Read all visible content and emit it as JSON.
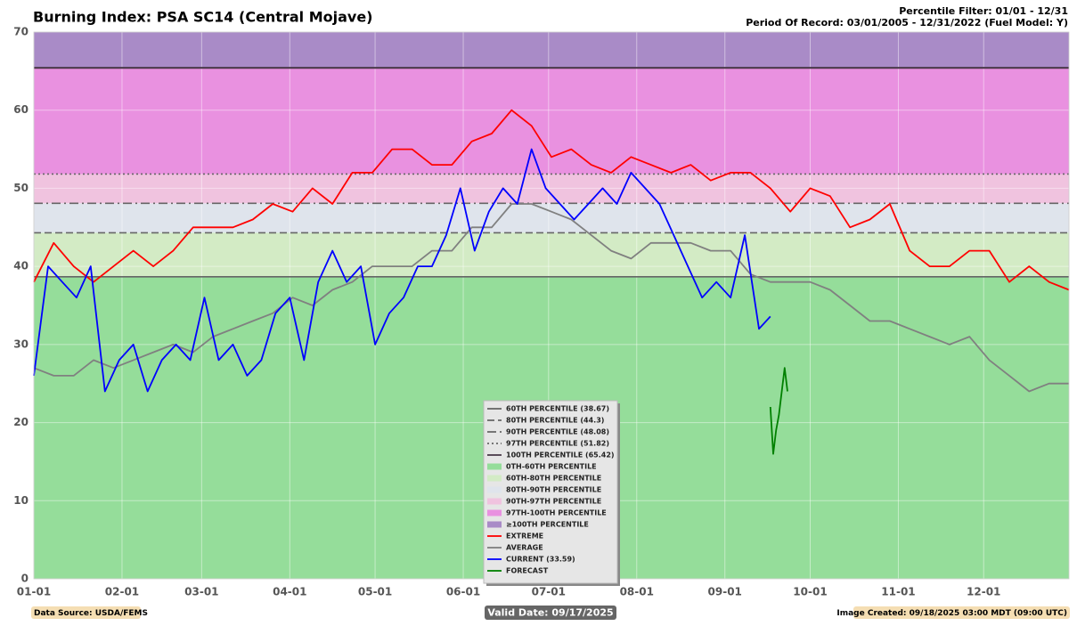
{
  "chart_data": {
    "type": "line",
    "title": "Burning Index: PSA SC14 (Central Mojave)",
    "subtitle_lines": [
      "Percentile Filter: 01/01 - 12/31",
      "Period Of Record: 03/01/2005 - 12/31/2022 (Fuel Model: Y)"
    ],
    "footer": {
      "source": "Data Source: USDA/FEMS",
      "valid": "Valid Date: 09/17/2025",
      "created": "Image Created: 09/18/2025 03:00 MDT (09:00 UTC)"
    },
    "xlim": [
      0,
      364
    ],
    "xticks": [
      {
        "value": 0,
        "label": "01-01"
      },
      {
        "value": 31,
        "label": "02-01"
      },
      {
        "value": 59,
        "label": "03-01"
      },
      {
        "value": 90,
        "label": "04-01"
      },
      {
        "value": 120,
        "label": "05-01"
      },
      {
        "value": 151,
        "label": "06-01"
      },
      {
        "value": 181,
        "label": "07-01"
      },
      {
        "value": 212,
        "label": "08-01"
      },
      {
        "value": 243,
        "label": "09-01"
      },
      {
        "value": 273,
        "label": "10-01"
      },
      {
        "value": 304,
        "label": "11-01"
      },
      {
        "value": 334,
        "label": "12-01"
      }
    ],
    "ylim": [
      0,
      70
    ],
    "yticks": [
      0,
      10,
      20,
      30,
      40,
      50,
      60,
      70
    ],
    "grid": true,
    "percentiles": [
      {
        "name": "60TH PERCENTILE (38.67)",
        "value": 38.67,
        "dash": "solid",
        "color": "#666666"
      },
      {
        "name": "80TH PERCENTILE (44.3)",
        "value": 44.3,
        "dash": "dashed",
        "color": "#666666"
      },
      {
        "name": "90TH PERCENTILE (48.08)",
        "value": 48.08,
        "dash": "dashdot",
        "color": "#666666"
      },
      {
        "name": "97TH PERCENTILE (51.82)",
        "value": 51.82,
        "dash": "dotted",
        "color": "#666666"
      },
      {
        "name": "100TH PERCENTILE (65.42)",
        "value": 65.42,
        "dash": "solid",
        "color": "#4a3a4a"
      }
    ],
    "bands": [
      {
        "name": "0TH-60TH PERCENTILE",
        "color": "#95dd9a"
      },
      {
        "name": "60TH-80TH PERCENTILE",
        "color": "#d3ebc5"
      },
      {
        "name": "80TH-90TH PERCENTILE",
        "color": "#dfe4ec"
      },
      {
        "name": "90TH-97TH PERCENTILE",
        "color": "#f0c3df"
      },
      {
        "name": "97TH-100TH PERCENTILE",
        "color": "#e991e0"
      },
      {
        "name": "≥100TH PERCENTILE",
        "color": "#a98bc7"
      }
    ],
    "series": [
      {
        "name": "EXTREME",
        "color": "#ff0000",
        "x": [
          0,
          7,
          14,
          21,
          28,
          35,
          42,
          49,
          56,
          63,
          70,
          77,
          84,
          91,
          98,
          105,
          112,
          119,
          126,
          133,
          140,
          147,
          154,
          161,
          168,
          175,
          182,
          189,
          196,
          203,
          210,
          217,
          224,
          231,
          238,
          245,
          252,
          259,
          266,
          273,
          280,
          287,
          294,
          301,
          308,
          315,
          322,
          329,
          336,
          343,
          350,
          357,
          364
        ],
        "values": [
          38,
          43,
          40,
          38,
          40,
          42,
          40,
          42,
          45,
          45,
          45,
          46,
          48,
          47,
          50,
          48,
          52,
          52,
          55,
          55,
          53,
          53,
          56,
          57,
          60,
          58,
          54,
          55,
          53,
          52,
          54,
          53,
          52,
          53,
          51,
          52,
          52,
          50,
          47,
          50,
          49,
          45,
          46,
          48,
          42,
          40,
          40,
          42,
          42,
          38,
          40,
          38,
          37
        ]
      },
      {
        "name": "AVERAGE",
        "color": "#808080",
        "x": [
          0,
          7,
          14,
          21,
          28,
          35,
          42,
          49,
          56,
          63,
          70,
          77,
          84,
          91,
          98,
          105,
          112,
          119,
          126,
          133,
          140,
          147,
          154,
          161,
          168,
          175,
          182,
          189,
          196,
          203,
          210,
          217,
          224,
          231,
          238,
          245,
          252,
          259,
          266,
          273,
          280,
          287,
          294,
          301,
          308,
          315,
          322,
          329,
          336,
          343,
          350,
          357,
          364
        ],
        "values": [
          27,
          26,
          26,
          28,
          27,
          28,
          29,
          30,
          29,
          31,
          32,
          33,
          34,
          36,
          35,
          37,
          38,
          40,
          40,
          40,
          42,
          42,
          45,
          45,
          48,
          48,
          47,
          46,
          44,
          42,
          41,
          43,
          43,
          43,
          42,
          42,
          39,
          38,
          38,
          38,
          37,
          35,
          33,
          33,
          32,
          31,
          30,
          31,
          28,
          26,
          24,
          25,
          25
        ]
      },
      {
        "name": "CURRENT (33.59)",
        "color": "#0000ff",
        "x": [
          0,
          5,
          10,
          15,
          20,
          25,
          30,
          35,
          40,
          45,
          50,
          55,
          60,
          65,
          70,
          75,
          80,
          85,
          90,
          95,
          100,
          105,
          110,
          115,
          120,
          125,
          130,
          135,
          140,
          145,
          150,
          155,
          160,
          165,
          170,
          175,
          180,
          185,
          190,
          195,
          200,
          205,
          210,
          215,
          220,
          225,
          230,
          235,
          240,
          245,
          250,
          255,
          259
        ],
        "values": [
          26,
          40,
          38,
          36,
          40,
          24,
          28,
          30,
          24,
          28,
          30,
          28,
          36,
          28,
          30,
          26,
          28,
          34,
          36,
          28,
          38,
          42,
          38,
          40,
          30,
          34,
          36,
          40,
          40,
          44,
          50,
          42,
          47,
          50,
          48,
          55,
          50,
          48,
          46,
          48,
          50,
          48,
          52,
          50,
          48,
          44,
          40,
          36,
          38,
          36,
          44,
          32,
          33.59
        ]
      },
      {
        "name": "FORECAST",
        "color": "#008000",
        "x": [
          259,
          260,
          261,
          262,
          263,
          264,
          265
        ],
        "values": [
          22,
          16,
          19,
          21,
          24,
          27,
          24
        ]
      }
    ]
  }
}
